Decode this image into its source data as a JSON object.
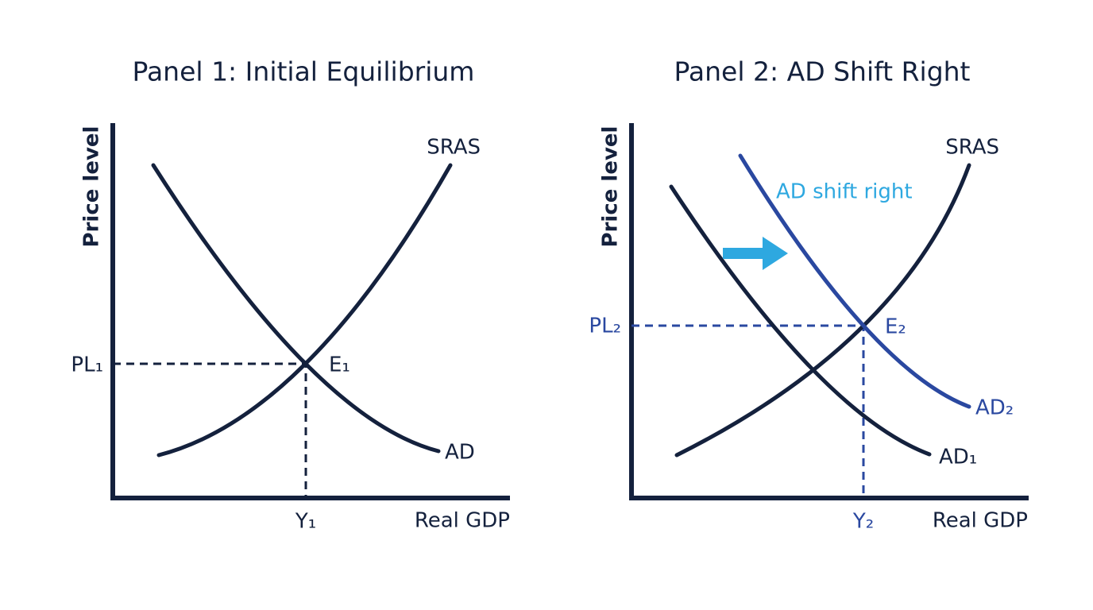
{
  "panels": [
    {
      "title": "Panel 1: Initial Equilibrium",
      "y_axis_label": "Price level",
      "x_axis_label": "Real GDP",
      "curves": [
        {
          "label": "SRAS"
        },
        {
          "label": "AD"
        }
      ],
      "price_label": "PL₁",
      "output_label": "Y₁",
      "equilibrium_label": "E₁"
    },
    {
      "title": "Panel 2: AD Shift Right",
      "y_axis_label": "Price level",
      "x_axis_label": "Real GDP",
      "curves": [
        {
          "label": "SRAS"
        },
        {
          "label": "AD₁"
        },
        {
          "label": "AD₂"
        }
      ],
      "annotation": "AD shift right",
      "price_label": "PL₂",
      "output_label": "Y₂",
      "equilibrium_label": "E₂"
    }
  ]
}
